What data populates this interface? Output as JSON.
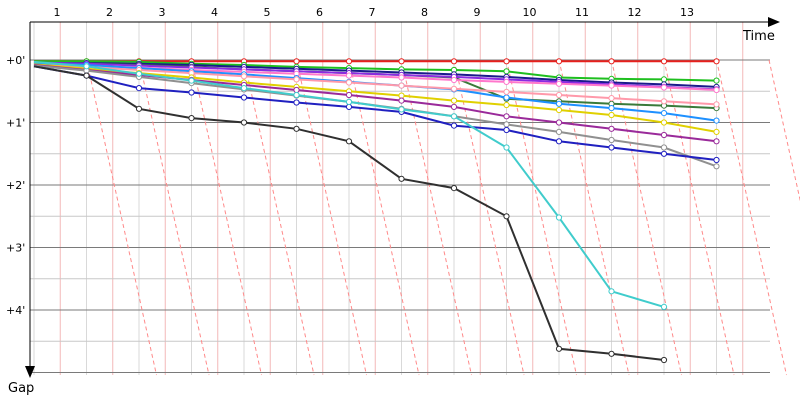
{
  "chart_data": {
    "type": "line",
    "title": "",
    "xlabel": "Time",
    "ylabel": "Gap",
    "x_ticks": [
      "1",
      "2",
      "3",
      "4",
      "5",
      "6",
      "7",
      "8",
      "9",
      "10",
      "11",
      "12",
      "13"
    ],
    "y_ticks": [
      "+0'",
      "+1'",
      "+2'",
      "+3'",
      "+4'"
    ],
    "ylim": [
      0,
      5
    ],
    "grid": true,
    "pit_line_color": "#ff8a8a",
    "series": [
      {
        "color": "#e8201c",
        "values": [
          0.02,
          0.02,
          0.02,
          0.02,
          0.02,
          0.02,
          0.02,
          0.02,
          0.02,
          0.02,
          0.02,
          0.02,
          0.02,
          0.02
        ]
      },
      {
        "color": "#1fbf1f",
        "values": [
          0.02,
          0.02,
          0.03,
          0.06,
          0.08,
          0.11,
          0.13,
          0.15,
          0.16,
          0.18,
          0.28,
          0.3,
          0.31,
          0.33
        ]
      },
      {
        "color": "#1a1a8c",
        "values": [
          0.05,
          0.05,
          0.06,
          0.08,
          0.11,
          0.14,
          0.17,
          0.2,
          0.23,
          0.27,
          0.32,
          0.36,
          0.39,
          0.43
        ]
      },
      {
        "color": "#3a7a3a",
        "values": [
          0.05,
          0.06,
          0.08,
          0.11,
          0.15,
          0.18,
          0.21,
          0.24,
          0.28,
          0.62,
          0.66,
          0.7,
          0.73,
          0.77
        ]
      },
      {
        "color": "#8a2be2",
        "values": [
          0.04,
          0.06,
          0.09,
          0.12,
          0.15,
          0.18,
          0.21,
          0.24,
          0.27,
          0.31,
          0.35,
          0.39,
          0.43,
          0.47
        ]
      },
      {
        "color": "#ff77cc",
        "values": [
          0.06,
          0.09,
          0.12,
          0.16,
          0.19,
          0.22,
          0.25,
          0.28,
          0.32,
          0.35,
          0.38,
          0.41,
          0.44,
          0.48
        ]
      },
      {
        "color": "#1e90ff",
        "values": [
          0.05,
          0.08,
          0.13,
          0.18,
          0.23,
          0.29,
          0.35,
          0.41,
          0.47,
          0.6,
          0.7,
          0.77,
          0.85,
          0.97
        ]
      },
      {
        "color": "#ff99aa",
        "values": [
          0.08,
          0.11,
          0.16,
          0.21,
          0.26,
          0.31,
          0.36,
          0.41,
          0.46,
          0.51,
          0.56,
          0.61,
          0.66,
          0.71
        ]
      },
      {
        "color": "#e0d000",
        "values": [
          0.07,
          0.14,
          0.21,
          0.28,
          0.36,
          0.43,
          0.5,
          0.57,
          0.65,
          0.72,
          0.8,
          0.88,
          1.0,
          1.15
        ]
      },
      {
        "color": "#9a2a9a",
        "values": [
          0.08,
          0.16,
          0.24,
          0.32,
          0.4,
          0.48,
          0.56,
          0.65,
          0.75,
          0.9,
          1.0,
          1.1,
          1.2,
          1.3
        ]
      },
      {
        "color": "#909090",
        "values": [
          0.09,
          0.17,
          0.27,
          0.37,
          0.47,
          0.57,
          0.67,
          0.78,
          0.9,
          1.03,
          1.15,
          1.28,
          1.4,
          1.7
        ]
      },
      {
        "color": "#2020c0",
        "values": [
          0.1,
          0.25,
          0.45,
          0.52,
          0.6,
          0.68,
          0.75,
          0.83,
          1.05,
          1.12,
          1.3,
          1.4,
          1.5,
          1.6
        ]
      },
      {
        "color": "#40cccc",
        "values": [
          0.03,
          0.1,
          0.22,
          0.33,
          0.45,
          0.56,
          0.67,
          0.79,
          0.9,
          1.4,
          2.52,
          3.7,
          3.95
        ]
      },
      {
        "color": "#303030",
        "values": [
          0.1,
          0.25,
          0.78,
          0.93,
          1.0,
          1.1,
          1.3,
          1.9,
          2.05,
          2.5,
          4.62,
          4.7,
          4.8
        ]
      }
    ]
  }
}
